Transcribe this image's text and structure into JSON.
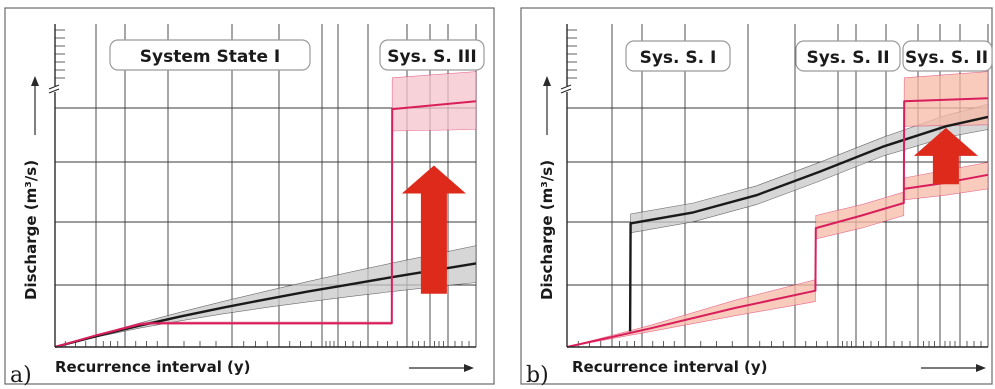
{
  "chart_data": [
    {
      "type": "line",
      "panel_label": "a)",
      "xlabel": "Recurrence interval (y)",
      "ylabel": "Discharge (m³/s)",
      "system_states": [
        "System State I",
        "Sys. S. III"
      ],
      "series": [
        {
          "color": "#1a1a1a",
          "band_color": "#c8c8c8",
          "x": [
            0,
            10,
            20,
            30,
            40,
            50,
            60,
            70,
            80,
            90,
            100
          ],
          "y": [
            0,
            3.5,
            6.8,
            9.8,
            12.6,
            15.2,
            17.7,
            20.0,
            22.3,
            24.5,
            26.7
          ],
          "lower": [
            0,
            3.2,
            6.0,
            8.4,
            10.6,
            12.6,
            14.4,
            16.1,
            17.7,
            19.2,
            20.6
          ],
          "upper": [
            0,
            3.8,
            7.6,
            11.2,
            14.6,
            17.8,
            20.9,
            23.9,
            26.8,
            29.6,
            32.4
          ]
        },
        {
          "color": "#d81e5b",
          "band_color": "#f5c3cc",
          "x": [
            0,
            10,
            20,
            23,
            79,
            80,
            80.1,
            100
          ],
          "y": [
            0,
            3.8,
            7.2,
            7.6,
            7.6,
            7.6,
            76.0,
            78.5
          ],
          "upper": [
            0,
            4.0,
            7.6,
            8.0,
            8.0,
            8.0,
            86.0,
            88.0
          ],
          "lower": [
            0,
            3.6,
            6.9,
            7.3,
            7.3,
            7.3,
            69.0,
            69.5
          ]
        }
      ],
      "annotations": [
        {
          "type": "arrow",
          "direction": "up",
          "color": "#dd2a1b",
          "x": 90,
          "y_from": 17,
          "y_to": 58
        }
      ],
      "axis_break": true,
      "ylim": [
        0,
        100
      ],
      "xlim": [
        0,
        100
      ],
      "grid": true
    },
    {
      "type": "line",
      "panel_label": "b)",
      "xlabel": "Recurrence interval (y)",
      "ylabel": "Discharge (m³/s)",
      "system_states": [
        "Sys. S. I",
        "Sys. S. II",
        "Sys. S. II"
      ],
      "series": [
        {
          "color": "#1a1a1a",
          "band_color": "#c8c8c8",
          "x": [
            15,
            15.1,
            30,
            45,
            60,
            75,
            90,
            100
          ],
          "y": [
            5,
            39.5,
            43.0,
            48.5,
            56.0,
            64.0,
            70.5,
            73.5
          ],
          "upper": [
            5,
            42.5,
            46.0,
            51.5,
            59.0,
            67.0,
            74.0,
            77.5
          ],
          "lower": [
            5,
            36.5,
            40.0,
            45.5,
            53.0,
            61.0,
            67.0,
            69.5
          ]
        },
        {
          "color": "#d81e5b",
          "band_color": "#f6b9a5",
          "x": [
            0,
            20,
            40,
            59,
            59.1,
            70,
            80,
            80.1,
            100
          ],
          "y": [
            0,
            6.0,
            12.5,
            18.0,
            38.0,
            42.0,
            46.0,
            78.5,
            79.5
          ],
          "upper": [
            0,
            7.0,
            15.0,
            21.5,
            42.0,
            45.5,
            49.5,
            86.0,
            88.0
          ],
          "lower": [
            0,
            5.0,
            10.0,
            14.5,
            34.5,
            38.0,
            42.0,
            70.5,
            71.0
          ]
        },
        {
          "color": "#d81e5b",
          "band_color": "#f6b9a5",
          "x": [
            80,
            90,
            100
          ],
          "y": [
            50.5,
            52.5,
            55.0
          ],
          "upper": [
            54.0,
            56.5,
            59.0
          ],
          "lower": [
            47.0,
            48.5,
            50.5
          ]
        }
      ],
      "annotations": [
        {
          "type": "arrow",
          "direction": "up",
          "color": "#dd2a1b",
          "x": 90,
          "y_from": 52,
          "y_to": 70
        }
      ],
      "axis_break": true,
      "ylim": [
        0,
        100
      ],
      "xlim": [
        0,
        100
      ],
      "grid": true
    }
  ]
}
